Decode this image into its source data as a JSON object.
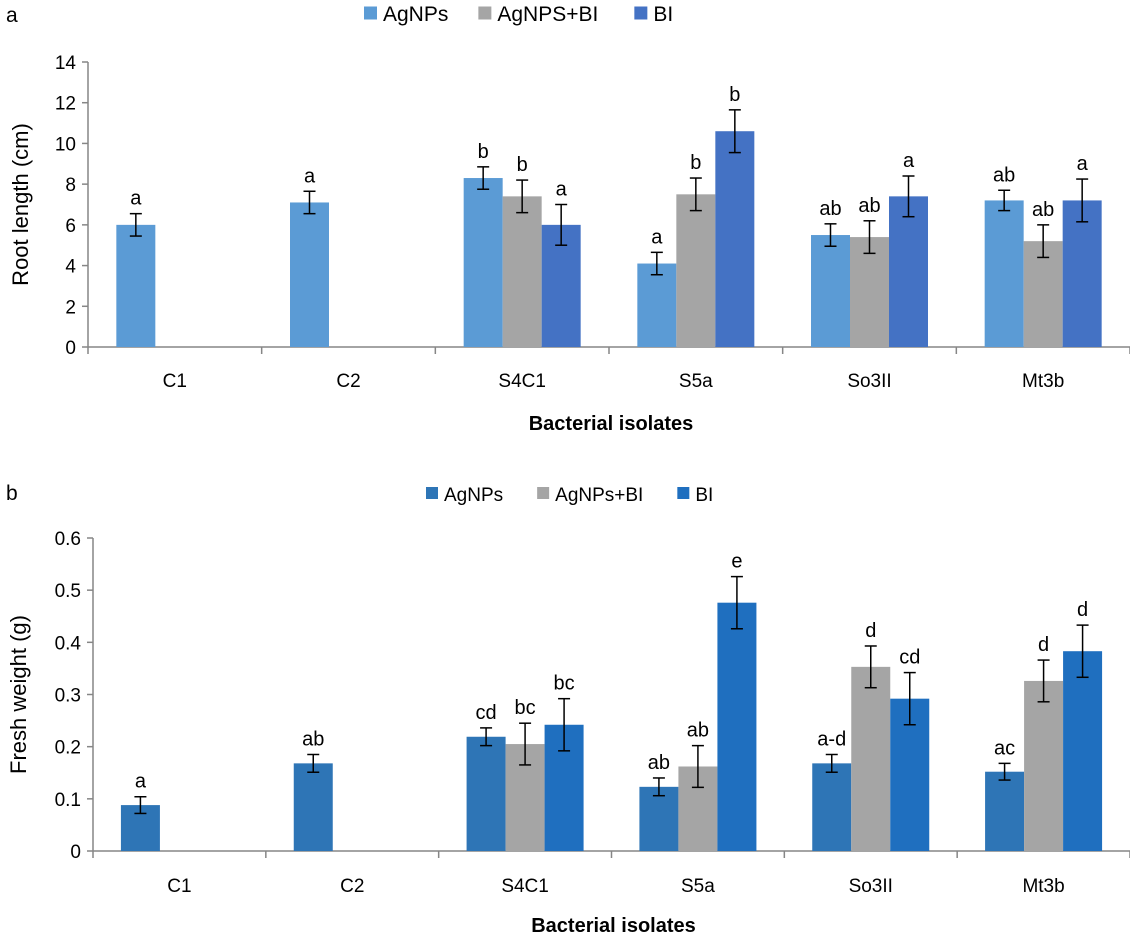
{
  "chart_data": [
    {
      "panel_label": "a",
      "type": "bar",
      "title": "",
      "xlabel": "Bacterial isolates",
      "ylabel": "Root length (cm)",
      "ylim": [
        0,
        14
      ],
      "yticks": [
        0,
        2,
        4,
        6,
        8,
        10,
        12,
        14
      ],
      "grid": false,
      "legend_position": "top-center",
      "categories": [
        "C1",
        "C2",
        "S4C1",
        "S5a",
        "So3II",
        "Mt3b"
      ],
      "series": [
        {
          "name": "AgNPs",
          "color": "#5b9bd5",
          "values": [
            6.0,
            7.1,
            8.3,
            4.1,
            5.5,
            7.2
          ],
          "errors": [
            0.55,
            0.55,
            0.55,
            0.55,
            0.55,
            0.5
          ],
          "labels": [
            "a",
            "a",
            "b",
            "a",
            "ab",
            "ab"
          ]
        },
        {
          "name": "AgNPS+BI",
          "color": "#a5a5a5",
          "values": [
            null,
            null,
            7.4,
            7.5,
            5.4,
            5.2
          ],
          "errors": [
            null,
            null,
            0.8,
            0.8,
            0.8,
            0.8
          ],
          "labels": [
            "",
            "",
            "b",
            "b",
            "ab",
            "ab"
          ]
        },
        {
          "name": "BI",
          "color": "#4472c4",
          "values": [
            null,
            null,
            6.0,
            10.6,
            7.4,
            7.2
          ],
          "errors": [
            null,
            null,
            1.0,
            1.05,
            1.0,
            1.05
          ],
          "labels": [
            "",
            "",
            "a",
            "b",
            "a",
            "a"
          ]
        }
      ]
    },
    {
      "panel_label": "b",
      "type": "bar",
      "title": "",
      "xlabel": "Bacterial isolates",
      "ylabel": "Fresh weight (g)",
      "ylim": [
        0,
        0.6
      ],
      "yticks": [
        "0",
        "0.1",
        "0.2",
        "0.3",
        "0.4",
        "0.5",
        "0.6"
      ],
      "grid": false,
      "legend_position": "top-center",
      "categories": [
        "C1",
        "C2",
        "S4C1",
        "S5a",
        "So3II",
        "Mt3b"
      ],
      "series": [
        {
          "name": "AgNPs",
          "color": "#2e75b6",
          "values": [
            0.088,
            0.168,
            0.219,
            0.123,
            0.168,
            0.152
          ],
          "errors": [
            0.016,
            0.017,
            0.017,
            0.017,
            0.017,
            0.016
          ],
          "labels": [
            "a",
            "ab",
            "cd",
            "ab",
            "a-d",
            "ac"
          ]
        },
        {
          "name": "AgNPs+BI",
          "color": "#a5a5a5",
          "values": [
            null,
            null,
            0.205,
            0.162,
            0.353,
            0.326
          ],
          "errors": [
            null,
            null,
            0.04,
            0.04,
            0.04,
            0.04
          ],
          "labels": [
            "",
            "",
            "bc",
            "ab",
            "d",
            "d"
          ]
        },
        {
          "name": "BI",
          "color": "#1f6fbf",
          "values": [
            null,
            null,
            0.242,
            0.476,
            0.292,
            0.383
          ],
          "errors": [
            null,
            null,
            0.05,
            0.05,
            0.05,
            0.05
          ],
          "labels": [
            "",
            "",
            "bc",
            "e",
            "cd",
            "d"
          ]
        }
      ]
    }
  ]
}
